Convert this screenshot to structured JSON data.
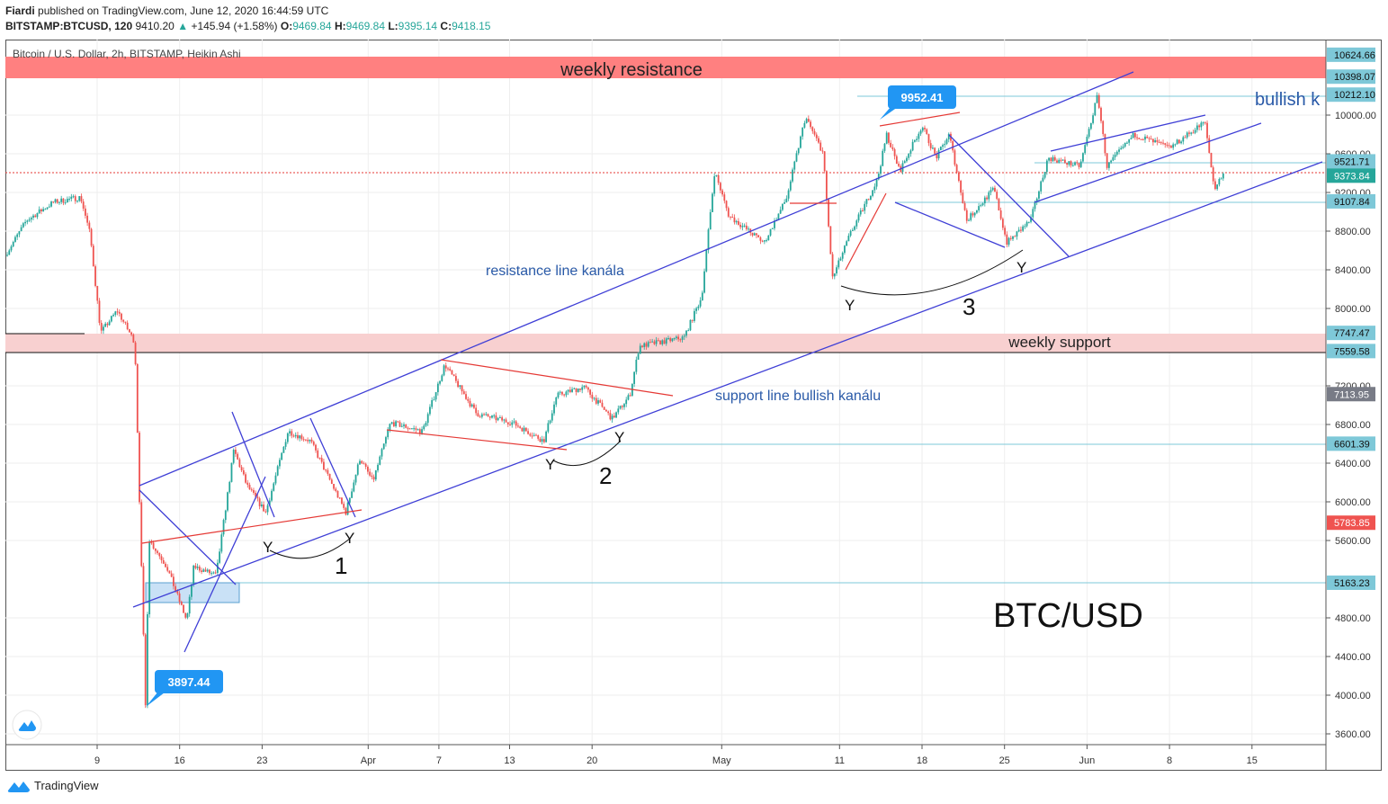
{
  "header": {
    "author": "Fiardi",
    "published": "published on TradingView.com, June 12, 2020 16:44:59 UTC",
    "symbol": "BITSTAMP:BTCUSD, 120",
    "last": "9410.20",
    "change": "+145.94 (+1.58%)",
    "o_label": "O:",
    "o": "9469.84",
    "h_label": "H:",
    "h": "9469.84",
    "l_label": "L:",
    "l": "9395.14",
    "c_label": "C:",
    "c": "9418.15"
  },
  "legend": "Bitcoin / U.S. Dollar, 2h, BITSTAMP, Heikin Ashi",
  "footer": {
    "brand": "TradingView"
  },
  "annotations": {
    "weekly_resistance": "weekly resistance",
    "weekly_support": "weekly support",
    "resistance_line": "resistance line kanála",
    "support_line": "support line bullish kanálu",
    "bullish": "bullish k",
    "title_big": "BTC/USD",
    "callout_high": "9952.41",
    "callout_low": "3897.44",
    "y_label": "Y",
    "n1": "1",
    "n2": "2",
    "n3": "3"
  },
  "colors": {
    "up": "#26a69a",
    "down": "#ef5350",
    "drawing_blue": "#3f3fd6",
    "drawing_red": "#e53935",
    "level": "#7ec8d8",
    "resistance_band": "#ff8080",
    "support_band": "#f8d0d0"
  },
  "chart_data": {
    "type": "candlestick",
    "title": "Bitcoin / U.S. Dollar, 2h, BITSTAMP, Heikin Ashi",
    "x_unit": "days from Mar 9, 2020",
    "x_ticks": [
      {
        "day": 0,
        "label": "9"
      },
      {
        "day": 7,
        "label": "16"
      },
      {
        "day": 14,
        "label": "23"
      },
      {
        "day": 23,
        "label": "Apr"
      },
      {
        "day": 29,
        "label": "7"
      },
      {
        "day": 35,
        "label": "13"
      },
      {
        "day": 42,
        "label": "20"
      },
      {
        "day": 53,
        "label": "May"
      },
      {
        "day": 63,
        "label": "11"
      },
      {
        "day": 70,
        "label": "18"
      },
      {
        "day": 77,
        "label": "25"
      },
      {
        "day": 84,
        "label": "Jun"
      },
      {
        "day": 91,
        "label": "8"
      },
      {
        "day": 98,
        "label": "15"
      }
    ],
    "y_ticks": [
      "10000.00",
      "9600.00",
      "9200.00",
      "8800.00",
      "8400.00",
      "8000.00",
      "7200.00",
      "6800.00",
      "6400.00",
      "6000.00",
      "5600.00",
      "4800.00",
      "4400.00",
      "4000.00",
      "3600.00"
    ],
    "y_tick_values": [
      10000,
      9600,
      9200,
      8800,
      8400,
      8000,
      7200,
      6800,
      6400,
      6000,
      5600,
      4800,
      4400,
      4000,
      3600
    ],
    "ylim": [
      3450,
      10850
    ],
    "price_path": [
      [
        -7.8,
        8550
      ],
      [
        -6,
        8910
      ],
      [
        -3.7,
        9100
      ],
      [
        -1.4,
        9150
      ],
      [
        -0.6,
        8770
      ],
      [
        0.3,
        7750
      ],
      [
        1.7,
        7980
      ],
      [
        3.2,
        7650
      ],
      [
        3.6,
        5980
      ],
      [
        4.1,
        3890
      ],
      [
        4.4,
        5610
      ],
      [
        5.9,
        5330
      ],
      [
        7.6,
        4770
      ],
      [
        8.2,
        5330
      ],
      [
        10.1,
        5240
      ],
      [
        11.6,
        6540
      ],
      [
        12.7,
        6170
      ],
      [
        14.3,
        5890
      ],
      [
        16.2,
        6730
      ],
      [
        18.1,
        6630
      ],
      [
        21.1,
        5890
      ],
      [
        22.3,
        6450
      ],
      [
        23.4,
        6210
      ],
      [
        24.9,
        6820
      ],
      [
        27.6,
        6730
      ],
      [
        29.5,
        7420
      ],
      [
        32.2,
        6910
      ],
      [
        35.2,
        6820
      ],
      [
        37.9,
        6630
      ],
      [
        39,
        7100
      ],
      [
        41.3,
        7190
      ],
      [
        43.7,
        6860
      ],
      [
        45.2,
        7100
      ],
      [
        46,
        7610
      ],
      [
        49.8,
        7700
      ],
      [
        51.3,
        8120
      ],
      [
        52.4,
        9420
      ],
      [
        53.6,
        8960
      ],
      [
        56.6,
        8680
      ],
      [
        58.5,
        9140
      ],
      [
        60.1,
        9980
      ],
      [
        61.6,
        9610
      ],
      [
        62.4,
        8310
      ],
      [
        63.9,
        8770
      ],
      [
        66.2,
        9330
      ],
      [
        67,
        9800
      ],
      [
        68.1,
        9420
      ],
      [
        70,
        9890
      ],
      [
        71.2,
        9560
      ],
      [
        72.3,
        9800
      ],
      [
        73.8,
        8910
      ],
      [
        76.1,
        9240
      ],
      [
        77.2,
        8680
      ],
      [
        79.2,
        8910
      ],
      [
        80.7,
        9560
      ],
      [
        83.4,
        9470
      ],
      [
        84.9,
        10210
      ],
      [
        85.7,
        9470
      ],
      [
        88,
        9800
      ],
      [
        91,
        9660
      ],
      [
        94,
        9930
      ],
      [
        94.8,
        9240
      ],
      [
        95.7,
        9420
      ]
    ],
    "price_labels": [
      {
        "value": "10624.66",
        "kind": "level"
      },
      {
        "value": "10398.07",
        "kind": "level"
      },
      {
        "value": "10212.10",
        "kind": "level"
      },
      {
        "value": "9521.71",
        "kind": "level"
      },
      {
        "value": "9373.84",
        "kind": "last"
      },
      {
        "value": "9107.84",
        "kind": "level"
      },
      {
        "value": "7747.47",
        "kind": "level"
      },
      {
        "value": "7559.58",
        "kind": "level"
      },
      {
        "value": "7113.95",
        "kind": "gray"
      },
      {
        "value": "6601.39",
        "kind": "level"
      },
      {
        "value": "5783.85",
        "kind": "red"
      },
      {
        "value": "5163.23",
        "kind": "level"
      }
    ]
  }
}
